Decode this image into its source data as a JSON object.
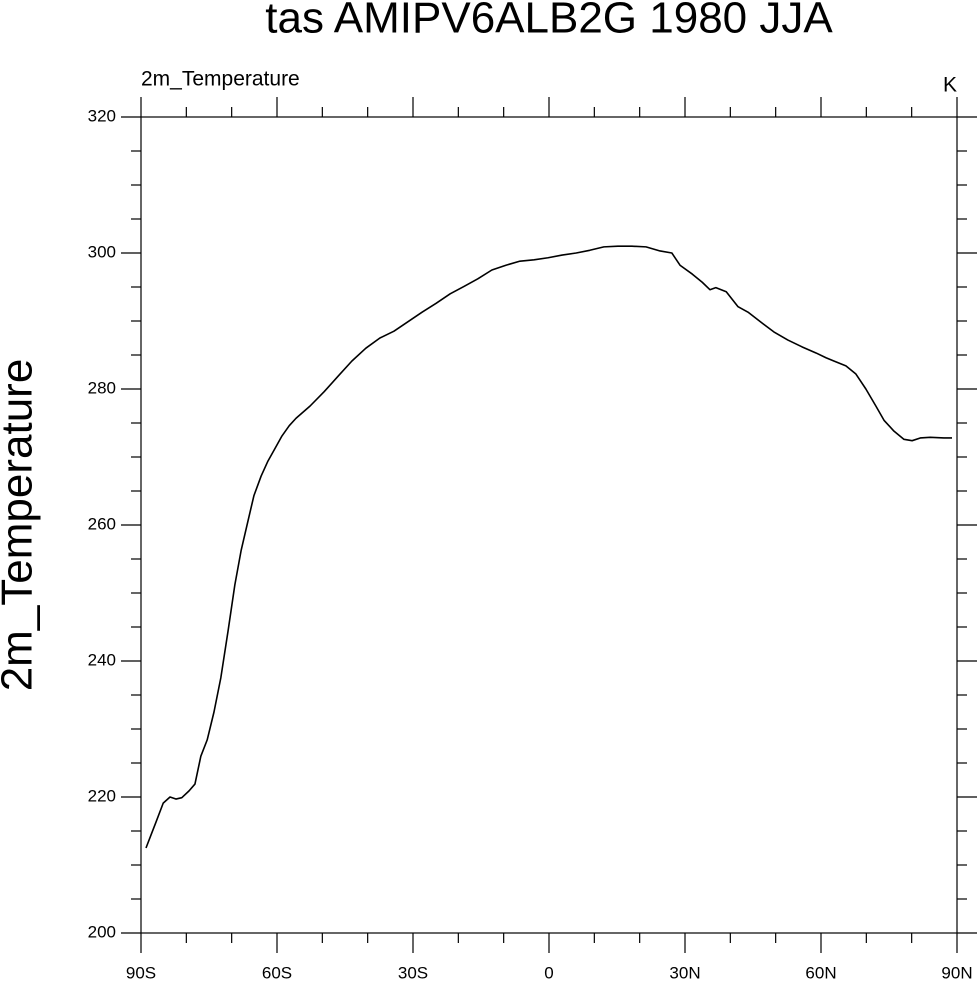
{
  "chart_data": {
    "type": "line",
    "title": "tas AMIPV6ALB2G 1980 JJA",
    "subtitle_left": "2m_Temperature",
    "subtitle_right": "K",
    "ylabel": "2m_Temperature",
    "x": [
      -88.9,
      -87.8,
      -86.7,
      -85.1,
      -83.6,
      -82.3,
      -81.0,
      -79.4,
      -78.1,
      -76.8,
      -75.4,
      -73.9,
      -72.4,
      -70.8,
      -69.3,
      -67.9,
      -66.4,
      -65.1,
      -63.5,
      -62.0,
      -60.4,
      -58.9,
      -57.3,
      -55.8,
      -52.7,
      -49.6,
      -46.5,
      -43.5,
      -40.4,
      -37.3,
      -34.2,
      -31.1,
      -28.0,
      -24.9,
      -21.8,
      -18.7,
      -15.7,
      -12.6,
      -9.5,
      -6.4,
      -3.3,
      -0.2,
      2.9,
      6.0,
      9.0,
      12.1,
      15.2,
      18.3,
      21.4,
      24.5,
      27.1,
      28.9,
      31.6,
      33.8,
      35.5,
      36.8,
      39.1,
      41.7,
      43.9,
      46.6,
      49.6,
      52.7,
      55.8,
      58.9,
      61.1,
      62.9,
      65.5,
      67.7,
      69.9,
      72.1,
      73.9,
      76.1,
      78.3,
      80.1,
      81.9,
      84.1,
      87.1,
      88.9
    ],
    "series": [
      {
        "color": "#000000",
        "values": [
          212.5,
          214.4,
          216.3,
          219.1,
          220.0,
          219.7,
          219.9,
          220.9,
          221.9,
          226.0,
          228.4,
          232.5,
          237.5,
          244.4,
          251.2,
          256.3,
          260.6,
          264.3,
          267.2,
          269.4,
          271.3,
          273.1,
          274.6,
          275.7,
          277.5,
          279.6,
          281.9,
          284.1,
          286.0,
          287.5,
          288.5,
          289.9,
          291.3,
          292.6,
          294.0,
          295.1,
          296.2,
          297.5,
          298.2,
          298.8,
          299.0,
          299.3,
          299.7,
          300.0,
          300.4,
          300.9,
          301.0,
          301.0,
          300.9,
          300.3,
          300.0,
          298.2,
          296.9,
          295.7,
          294.6,
          294.9,
          294.3,
          292.1,
          291.3,
          289.9,
          288.4,
          287.2,
          286.2,
          285.3,
          284.6,
          284.1,
          283.4,
          282.2,
          280.0,
          277.5,
          275.4,
          273.8,
          272.6,
          272.4,
          272.8,
          272.9,
          272.8,
          272.8
        ]
      }
    ],
    "xlim": [
      -90,
      90
    ],
    "xticks": [
      {
        "value": -90,
        "label": "90S"
      },
      {
        "value": -60,
        "label": "60S"
      },
      {
        "value": -30,
        "label": "30S"
      },
      0,
      {
        "value": 30,
        "label": "30N"
      },
      {
        "value": 60,
        "label": "60N"
      },
      {
        "value": 90,
        "label": "90N"
      }
    ],
    "ylim": [
      200,
      320
    ],
    "yticks": [
      200,
      220,
      240,
      260,
      280,
      300,
      320
    ]
  }
}
